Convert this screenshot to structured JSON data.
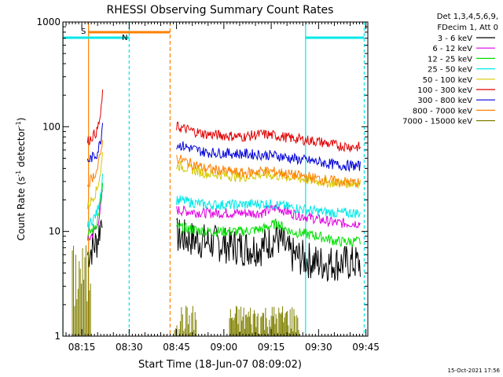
{
  "chart_data": {
    "type": "line",
    "title": "RHESSI Observing Summary Count Rates",
    "xlabel": "Start Time (18-Jun-07 08:09:02)",
    "ylabel_main": "Count Rate (s",
    "ylabel_sup1": "-1",
    "ylabel_mid": " detector",
    "ylabel_sup2": "-1",
    "ylabel_end": ")",
    "x_tick_labels": [
      "08:15",
      "08:30",
      "08:45",
      "09:00",
      "09:15",
      "09:30",
      "09:45"
    ],
    "y_tick_labels": [
      "1",
      "10",
      "100",
      "1000"
    ],
    "x_range_min": [
      8.15,
      9.76
    ],
    "y_scale": "log",
    "ylim": [
      1,
      1000
    ],
    "footer": "15-Oct-2021 17:56",
    "legend_header": [
      "Det 1,3,4,5,6,9,",
      "FDecim 1, Att 0"
    ],
    "bar_labels": {
      "s": "S",
      "n": "N"
    },
    "series": [
      {
        "name": "3 - 6 keV",
        "color": "#000000",
        "points": [
          [
            8.28,
            6
          ],
          [
            8.33,
            8
          ],
          [
            8.35,
            12
          ],
          [
            8.36,
            16
          ],
          [
            8.75,
            9
          ],
          [
            8.9,
            8
          ],
          [
            9.1,
            7
          ],
          [
            9.2,
            7
          ],
          [
            9.28,
            9
          ],
          [
            9.35,
            6
          ],
          [
            9.5,
            5
          ],
          [
            9.6,
            5
          ],
          [
            9.72,
            5
          ]
        ]
      },
      {
        "name": "6 - 12 keV",
        "color": "#e000e0",
        "points": [
          [
            8.28,
            8
          ],
          [
            8.33,
            11
          ],
          [
            8.35,
            17
          ],
          [
            8.36,
            25
          ],
          [
            8.75,
            16
          ],
          [
            8.9,
            15
          ],
          [
            9.1,
            15
          ],
          [
            9.2,
            15
          ],
          [
            9.28,
            17
          ],
          [
            9.35,
            15
          ],
          [
            9.5,
            13
          ],
          [
            9.6,
            12
          ],
          [
            9.72,
            12
          ]
        ]
      },
      {
        "name": "12 - 25 keV",
        "color": "#00e000",
        "points": [
          [
            8.28,
            9
          ],
          [
            8.33,
            12
          ],
          [
            8.35,
            19
          ],
          [
            8.36,
            28
          ],
          [
            8.75,
            11
          ],
          [
            8.9,
            10
          ],
          [
            9.1,
            10
          ],
          [
            9.2,
            10.5
          ],
          [
            9.28,
            12
          ],
          [
            9.35,
            10
          ],
          [
            9.5,
            9
          ],
          [
            9.6,
            8
          ],
          [
            9.72,
            8
          ]
        ]
      },
      {
        "name": "25 - 50 keV",
        "color": "#00e8e8",
        "points": [
          [
            8.28,
            11
          ],
          [
            8.33,
            15
          ],
          [
            8.35,
            24
          ],
          [
            8.36,
            34
          ],
          [
            8.75,
            20
          ],
          [
            8.9,
            18
          ],
          [
            9.1,
            18
          ],
          [
            9.2,
            18.5
          ],
          [
            9.28,
            18
          ],
          [
            9.35,
            17
          ],
          [
            9.5,
            15.5
          ],
          [
            9.6,
            15
          ],
          [
            9.72,
            15
          ]
        ]
      },
      {
        "name": "50 - 100 keV",
        "color": "#d8c800",
        "points": [
          [
            8.28,
            17
          ],
          [
            8.33,
            25
          ],
          [
            8.35,
            38
          ],
          [
            8.36,
            55
          ],
          [
            8.75,
            43
          ],
          [
            8.9,
            36
          ],
          [
            9.1,
            33
          ],
          [
            9.2,
            35
          ],
          [
            9.28,
            34
          ],
          [
            9.35,
            33
          ],
          [
            9.5,
            30
          ],
          [
            9.6,
            29
          ],
          [
            9.72,
            29
          ]
        ]
      },
      {
        "name": "100 - 300 keV",
        "color": "#e00000",
        "points": [
          [
            8.28,
            72
          ],
          [
            8.33,
            90
          ],
          [
            8.35,
            130
          ],
          [
            8.36,
            210
          ],
          [
            8.75,
            100
          ],
          [
            8.9,
            85
          ],
          [
            9.1,
            80
          ],
          [
            9.2,
            85
          ],
          [
            9.28,
            82
          ],
          [
            9.35,
            78
          ],
          [
            9.5,
            72
          ],
          [
            9.6,
            66
          ],
          [
            9.72,
            64
          ]
        ]
      },
      {
        "name": "300 - 800 keV",
        "color": "#0000d8",
        "points": [
          [
            8.28,
            47
          ],
          [
            8.33,
            55
          ],
          [
            8.35,
            75
          ],
          [
            8.36,
            110
          ],
          [
            8.75,
            68
          ],
          [
            8.9,
            57
          ],
          [
            9.1,
            55
          ],
          [
            9.2,
            54
          ],
          [
            9.28,
            53
          ],
          [
            9.35,
            50
          ],
          [
            9.5,
            46
          ],
          [
            9.6,
            43
          ],
          [
            9.72,
            42
          ]
        ]
      },
      {
        "name": "800 - 7000 keV",
        "color": "#ff8000",
        "points": [
          [
            8.28,
            28
          ],
          [
            8.33,
            38
          ],
          [
            8.35,
            55
          ],
          [
            8.36,
            80
          ],
          [
            8.75,
            50
          ],
          [
            8.9,
            40
          ],
          [
            9.1,
            36
          ],
          [
            9.2,
            38
          ],
          [
            9.28,
            37
          ],
          [
            9.35,
            35
          ],
          [
            9.5,
            32
          ],
          [
            9.6,
            30
          ],
          [
            9.72,
            29
          ]
        ]
      },
      {
        "name": "7000 - 15000 keV",
        "color": "#808000",
        "points": []
      }
    ]
  }
}
